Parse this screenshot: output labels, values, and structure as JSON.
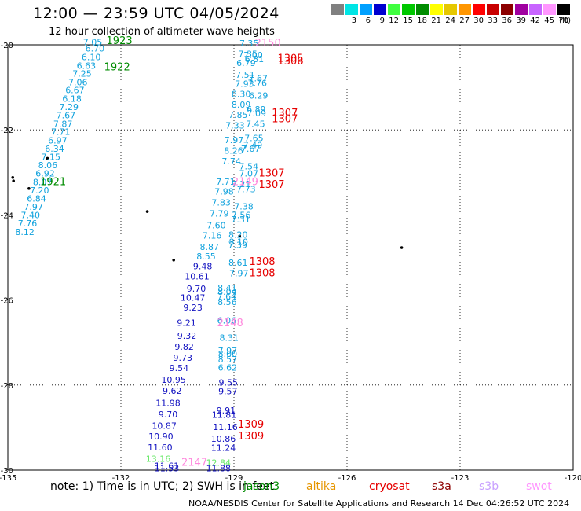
{
  "header": {
    "title": "12:00 — 23:59 UTC 04/05/2024",
    "subtitle": "12 hour collection of altimeter wave heights"
  },
  "legend": {
    "unit": "(ft)",
    "bins": [
      {
        "label": "",
        "color": "#808080"
      },
      {
        "label": "3",
        "color": "#00e5e5"
      },
      {
        "label": "6",
        "color": "#00a0ff"
      },
      {
        "label": "9",
        "color": "#0000d0"
      },
      {
        "label": "12",
        "color": "#40ff40"
      },
      {
        "label": "15",
        "color": "#00c800"
      },
      {
        "label": "18",
        "color": "#008c00"
      },
      {
        "label": "21",
        "color": "#ffff00"
      },
      {
        "label": "24",
        "color": "#e6c800"
      },
      {
        "label": "27",
        "color": "#ff9600"
      },
      {
        "label": "30",
        "color": "#ff0000"
      },
      {
        "label": "33",
        "color": "#c80000"
      },
      {
        "label": "36",
        "color": "#8c0000"
      },
      {
        "label": "39",
        "color": "#a000a0"
      },
      {
        "label": "42",
        "color": "#c864ff"
      },
      {
        "label": "45",
        "color": "#ff96ff"
      },
      {
        "label": "70",
        "color": "#000000"
      }
    ]
  },
  "axes": {
    "lon_ticks": [
      "-135",
      "-132",
      "-129",
      "-126",
      "-123",
      "-120"
    ],
    "lat_ticks": [
      "-20",
      "-22",
      "-24",
      "-26",
      "-28",
      "-30"
    ]
  },
  "colors": {
    "sea_blue": "#11a2dd",
    "dark_blue": "#1010c0",
    "green": "#008c00",
    "light_green": "#66e866",
    "red": "#e60000",
    "pink": "#ff88dd"
  },
  "track_labels": [
    {
      "text": "1923",
      "lon": -132.04,
      "lat": -19.98,
      "color": "#008c00"
    },
    {
      "text": "1922",
      "lon": -132.1,
      "lat": -20.6,
      "color": "#008c00"
    },
    {
      "text": "1921",
      "lon": -133.8,
      "lat": -23.3,
      "color": "#008c00"
    },
    {
      "text": "2150",
      "lon": -128.1,
      "lat": -20.04,
      "color": "#ff88dd"
    },
    {
      "text": "1306",
      "lon": -127.5,
      "lat": -20.46,
      "color": "#e60000"
    },
    {
      "text": "1305",
      "lon": -127.5,
      "lat": -20.4,
      "color": "#e60000"
    },
    {
      "text": "1307",
      "lon": -127.65,
      "lat": -21.68,
      "color": "#e60000"
    },
    {
      "text": "1307",
      "lon": -127.65,
      "lat": -21.82,
      "color": "#e60000"
    },
    {
      "text": "1307",
      "lon": -128.0,
      "lat": -23.1,
      "color": "#e60000"
    },
    {
      "text": "1307",
      "lon": -128.0,
      "lat": -23.36,
      "color": "#e60000"
    },
    {
      "text": "2149",
      "lon": -128.7,
      "lat": -23.3,
      "color": "#ff88dd"
    },
    {
      "text": "1308",
      "lon": -128.25,
      "lat": -25.18,
      "color": "#e60000"
    },
    {
      "text": "1308",
      "lon": -128.25,
      "lat": -25.44,
      "color": "#e60000"
    },
    {
      "text": "2148",
      "lon": -129.1,
      "lat": -26.62,
      "color": "#ff88dd"
    },
    {
      "text": "1309",
      "lon": -128.55,
      "lat": -29.0,
      "color": "#e60000"
    },
    {
      "text": "1309",
      "lon": -128.55,
      "lat": -29.28,
      "color": "#e60000"
    },
    {
      "text": "2147",
      "lon": -130.05,
      "lat": -29.9,
      "color": "#ff88dd"
    }
  ],
  "wave_heights": [
    {
      "v": "7.05",
      "lon": -132.75,
      "lat": -20.01,
      "c": "sea_blue"
    },
    {
      "v": "6.70",
      "lon": -132.69,
      "lat": -20.16,
      "c": "sea_blue"
    },
    {
      "v": "6.10",
      "lon": -132.79,
      "lat": -20.36,
      "c": "sea_blue"
    },
    {
      "v": "6.63",
      "lon": -132.92,
      "lat": -20.56,
      "c": "sea_blue"
    },
    {
      "v": "7.25",
      "lon": -133.03,
      "lat": -20.75,
      "c": "sea_blue"
    },
    {
      "v": "7.06",
      "lon": -133.14,
      "lat": -20.95,
      "c": "sea_blue"
    },
    {
      "v": "6.67",
      "lon": -133.22,
      "lat": -21.14,
      "c": "sea_blue"
    },
    {
      "v": "6.18",
      "lon": -133.3,
      "lat": -21.34,
      "c": "sea_blue"
    },
    {
      "v": "7.29",
      "lon": -133.38,
      "lat": -21.53,
      "c": "sea_blue"
    },
    {
      "v": "7.67",
      "lon": -133.46,
      "lat": -21.73,
      "c": "sea_blue"
    },
    {
      "v": "7.87",
      "lon": -133.54,
      "lat": -21.93,
      "c": "sea_blue"
    },
    {
      "v": "7.71",
      "lon": -133.6,
      "lat": -22.12,
      "c": "sea_blue"
    },
    {
      "v": "6.97",
      "lon": -133.68,
      "lat": -22.32,
      "c": "sea_blue"
    },
    {
      "v": "6.34",
      "lon": -133.76,
      "lat": -22.51,
      "c": "sea_blue"
    },
    {
      "v": "7.15",
      "lon": -133.86,
      "lat": -22.71,
      "c": "sea_blue"
    },
    {
      "v": "8.06",
      "lon": -133.94,
      "lat": -22.9,
      "c": "sea_blue"
    },
    {
      "v": "6.92",
      "lon": -134.01,
      "lat": -23.1,
      "c": "sea_blue"
    },
    {
      "v": "8.07",
      "lon": -134.08,
      "lat": -23.3,
      "c": "sea_blue"
    },
    {
      "v": "7.20",
      "lon": -134.16,
      "lat": -23.49,
      "c": "sea_blue"
    },
    {
      "v": "6.84",
      "lon": -134.24,
      "lat": -23.69,
      "c": "sea_blue"
    },
    {
      "v": "7.97",
      "lon": -134.32,
      "lat": -23.88,
      "c": "sea_blue"
    },
    {
      "v": "7.40",
      "lon": -134.4,
      "lat": -24.08,
      "c": "sea_blue"
    },
    {
      "v": "7.76",
      "lon": -134.48,
      "lat": -24.27,
      "c": "sea_blue"
    },
    {
      "v": "8.12",
      "lon": -134.55,
      "lat": -24.47,
      "c": "sea_blue"
    },
    {
      "v": "7.35",
      "lon": -128.6,
      "lat": -20.04,
      "c": "sea_blue"
    },
    {
      "v": "7.35",
      "lon": -128.63,
      "lat": -20.29,
      "c": "sea_blue"
    },
    {
      "v": "7.00",
      "lon": -128.49,
      "lat": -20.31,
      "c": "sea_blue"
    },
    {
      "v": "6.81",
      "lon": -128.46,
      "lat": -20.41,
      "c": "sea_blue"
    },
    {
      "v": "6.79",
      "lon": -128.68,
      "lat": -20.5,
      "c": "sea_blue"
    },
    {
      "v": "7.51",
      "lon": -128.7,
      "lat": -20.78,
      "c": "sea_blue"
    },
    {
      "v": "7.67",
      "lon": -128.36,
      "lat": -20.86,
      "c": "sea_blue"
    },
    {
      "v": "7.93",
      "lon": -128.72,
      "lat": -20.99,
      "c": "sea_blue"
    },
    {
      "v": "7.76",
      "lon": -128.38,
      "lat": -20.97,
      "c": "sea_blue"
    },
    {
      "v": "8.30",
      "lon": -128.81,
      "lat": -21.23,
      "c": "sea_blue"
    },
    {
      "v": "6.29",
      "lon": -128.35,
      "lat": -21.27,
      "c": "sea_blue"
    },
    {
      "v": "8.09",
      "lon": -128.81,
      "lat": -21.48,
      "c": "sea_blue"
    },
    {
      "v": "6.89",
      "lon": -128.41,
      "lat": -21.59,
      "c": "sea_blue"
    },
    {
      "v": "7.85",
      "lon": -128.89,
      "lat": -21.72,
      "c": "sea_blue"
    },
    {
      "v": "7.09",
      "lon": -128.4,
      "lat": -21.68,
      "c": "sea_blue"
    },
    {
      "v": "7.45",
      "lon": -128.43,
      "lat": -21.93,
      "c": "sea_blue"
    },
    {
      "v": "7.33",
      "lon": -128.97,
      "lat": -21.97,
      "c": "sea_blue"
    },
    {
      "v": "7.65",
      "lon": -128.47,
      "lat": -22.26,
      "c": "sea_blue"
    },
    {
      "v": "7.97",
      "lon": -129.0,
      "lat": -22.31,
      "c": "sea_blue"
    },
    {
      "v": "7.49",
      "lon": -128.5,
      "lat": -22.43,
      "c": "sea_blue"
    },
    {
      "v": "8.26",
      "lon": -129.01,
      "lat": -22.56,
      "c": "sea_blue"
    },
    {
      "v": "7.67",
      "lon": -128.56,
      "lat": -22.51,
      "c": "sea_blue"
    },
    {
      "v": "7.74",
      "lon": -129.07,
      "lat": -22.81,
      "c": "sea_blue"
    },
    {
      "v": "7.54",
      "lon": -128.61,
      "lat": -22.93,
      "c": "sea_blue"
    },
    {
      "v": "7.07",
      "lon": -128.61,
      "lat": -23.1,
      "c": "sea_blue"
    },
    {
      "v": "7.71",
      "lon": -129.22,
      "lat": -23.29,
      "c": "sea_blue"
    },
    {
      "v": "7.21",
      "lon": -128.81,
      "lat": -23.35,
      "c": "sea_blue"
    },
    {
      "v": "7.73",
      "lon": -128.68,
      "lat": -23.47,
      "c": "sea_blue"
    },
    {
      "v": "7.98",
      "lon": -129.26,
      "lat": -23.52,
      "c": "sea_blue"
    },
    {
      "v": "7.83",
      "lon": -129.34,
      "lat": -23.78,
      "c": "sea_blue"
    },
    {
      "v": "7.38",
      "lon": -128.74,
      "lat": -23.87,
      "c": "sea_blue"
    },
    {
      "v": "7.79",
      "lon": -129.39,
      "lat": -24.04,
      "c": "sea_blue"
    },
    {
      "v": "7.56",
      "lon": -128.81,
      "lat": -24.08,
      "c": "sea_blue"
    },
    {
      "v": "7.31",
      "lon": -128.82,
      "lat": -24.18,
      "c": "sea_blue"
    },
    {
      "v": "7.60",
      "lon": -129.47,
      "lat": -24.32,
      "c": "sea_blue"
    },
    {
      "v": "8.20",
      "lon": -128.89,
      "lat": -24.54,
      "c": "sea_blue"
    },
    {
      "v": "7.16",
      "lon": -129.58,
      "lat": -24.56,
      "c": "sea_blue"
    },
    {
      "v": "8.10",
      "lon": -128.88,
      "lat": -24.7,
      "c": "sea_blue"
    },
    {
      "v": "7.39",
      "lon": -128.9,
      "lat": -24.78,
      "c": "sea_blue"
    },
    {
      "v": "8.87",
      "lon": -129.65,
      "lat": -24.82,
      "c": "sea_blue"
    },
    {
      "v": "8.55",
      "lon": -129.74,
      "lat": -25.05,
      "c": "sea_blue"
    },
    {
      "v": "8.61",
      "lon": -128.89,
      "lat": -25.19,
      "c": "sea_blue"
    },
    {
      "v": "9.48",
      "lon": -129.83,
      "lat": -25.28,
      "c": "dark_blue"
    },
    {
      "v": "7.97",
      "lon": -128.87,
      "lat": -25.44,
      "c": "sea_blue"
    },
    {
      "v": "10.61",
      "lon": -129.98,
      "lat": -25.52,
      "c": "dark_blue"
    },
    {
      "v": "9.70",
      "lon": -130.0,
      "lat": -25.8,
      "c": "dark_blue"
    },
    {
      "v": "8.41",
      "lon": -129.18,
      "lat": -25.79,
      "c": "sea_blue"
    },
    {
      "v": "8.04",
      "lon": -129.18,
      "lat": -25.88,
      "c": "sea_blue"
    },
    {
      "v": "7.64",
      "lon": -129.19,
      "lat": -25.99,
      "c": "sea_blue"
    },
    {
      "v": "10.47",
      "lon": -130.09,
      "lat": -26.02,
      "c": "dark_blue"
    },
    {
      "v": "8.56",
      "lon": -129.18,
      "lat": -26.12,
      "c": "sea_blue"
    },
    {
      "v": "9.23",
      "lon": -130.09,
      "lat": -26.25,
      "c": "dark_blue"
    },
    {
      "v": "6.06",
      "lon": -129.19,
      "lat": -26.55,
      "c": "sea_blue"
    },
    {
      "v": "9.21",
      "lon": -130.26,
      "lat": -26.61,
      "c": "dark_blue"
    },
    {
      "v": "9.32",
      "lon": -130.25,
      "lat": -26.91,
      "c": "dark_blue"
    },
    {
      "v": "8.31",
      "lon": -129.13,
      "lat": -26.96,
      "c": "sea_blue"
    },
    {
      "v": "9.82",
      "lon": -130.32,
      "lat": -27.17,
      "c": "dark_blue"
    },
    {
      "v": "7.97",
      "lon": -129.17,
      "lat": -27.26,
      "c": "sea_blue"
    },
    {
      "v": "8.00",
      "lon": -129.17,
      "lat": -27.34,
      "c": "sea_blue"
    },
    {
      "v": "9.73",
      "lon": -130.36,
      "lat": -27.43,
      "c": "dark_blue"
    },
    {
      "v": "8.57",
      "lon": -129.17,
      "lat": -27.47,
      "c": "sea_blue"
    },
    {
      "v": "6.62",
      "lon": -129.17,
      "lat": -27.66,
      "c": "sea_blue"
    },
    {
      "v": "9.54",
      "lon": -130.46,
      "lat": -27.67,
      "c": "dark_blue"
    },
    {
      "v": "10.95",
      "lon": -130.6,
      "lat": -27.95,
      "c": "dark_blue"
    },
    {
      "v": "9.55",
      "lon": -129.15,
      "lat": -28.01,
      "c": "dark_blue"
    },
    {
      "v": "9.62",
      "lon": -130.64,
      "lat": -28.21,
      "c": "dark_blue"
    },
    {
      "v": "9.57",
      "lon": -129.16,
      "lat": -28.22,
      "c": "dark_blue"
    },
    {
      "v": "11.98",
      "lon": -130.75,
      "lat": -28.49,
      "c": "dark_blue"
    },
    {
      "v": "9.91",
      "lon": -129.21,
      "lat": -28.67,
      "c": "dark_blue"
    },
    {
      "v": "9.70",
      "lon": -130.75,
      "lat": -28.76,
      "c": "dark_blue"
    },
    {
      "v": "11.81",
      "lon": -129.26,
      "lat": -28.77,
      "c": "dark_blue"
    },
    {
      "v": "10.87",
      "lon": -130.85,
      "lat": -29.03,
      "c": "dark_blue"
    },
    {
      "v": "11.16",
      "lon": -129.23,
      "lat": -29.06,
      "c": "dark_blue"
    },
    {
      "v": "10.90",
      "lon": -130.94,
      "lat": -29.28,
      "c": "dark_blue"
    },
    {
      "v": "10.86",
      "lon": -129.28,
      "lat": -29.33,
      "c": "dark_blue"
    },
    {
      "v": "11.60",
      "lon": -130.96,
      "lat": -29.54,
      "c": "dark_blue"
    },
    {
      "v": "11.24",
      "lon": -129.28,
      "lat": -29.55,
      "c": "dark_blue"
    },
    {
      "v": "13.16",
      "lon": -131.01,
      "lat": -29.81,
      "c": "light_green"
    },
    {
      "v": "12.84",
      "lon": -129.41,
      "lat": -29.9,
      "c": "light_green"
    },
    {
      "v": "11.61",
      "lon": -130.78,
      "lat": -29.97,
      "c": "dark_blue"
    },
    {
      "v": "11.53",
      "lon": -130.78,
      "lat": -30.03,
      "c": "dark_blue"
    },
    {
      "v": "11.88",
      "lon": -129.41,
      "lat": -30.03,
      "c": "dark_blue"
    }
  ],
  "islands": [
    {
      "lon": -133.95,
      "lat": -22.67
    },
    {
      "lon": -134.87,
      "lat": -23.12
    },
    {
      "lon": -134.85,
      "lat": -23.2
    },
    {
      "lon": -134.44,
      "lat": -23.38
    },
    {
      "lon": -131.3,
      "lat": -23.92
    },
    {
      "lon": -128.85,
      "lat": -24.5
    },
    {
      "lon": -130.6,
      "lat": -25.06
    },
    {
      "lon": -124.55,
      "lat": -24.77
    }
  ],
  "footer": {
    "note": "note:  1) Time is in UTC;  2) SWH is in feet",
    "satellites": [
      {
        "name": "jason3",
        "color": "#008c00",
        "offset": 245
      },
      {
        "name": "altika",
        "color": "#e69600",
        "offset": 325
      },
      {
        "name": "cryosat",
        "color": "#e60000",
        "offset": 405
      },
      {
        "name": "s3a",
        "color": "#8c0000",
        "offset": 485
      },
      {
        "name": "s3b",
        "color": "#c8a0ff",
        "offset": 545
      },
      {
        "name": "swot",
        "color": "#ff96ff",
        "offset": 605
      }
    ],
    "credit": "NOAA/NESDIS Center for Satellite Applications and Research     14 Dec 04:26:52 UTC 2024"
  }
}
